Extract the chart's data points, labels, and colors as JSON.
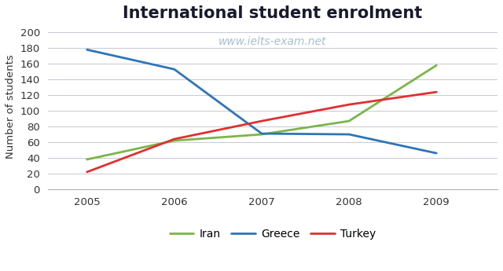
{
  "title": "International student enrolment",
  "ylabel": "Number of students",
  "watermark": "www.ielts-exam.net",
  "years": [
    2005,
    2006,
    2007,
    2008,
    2009
  ],
  "series": {
    "Iran": {
      "values": [
        38,
        62,
        70,
        87,
        158
      ],
      "color": "#7ab648",
      "linewidth": 2.0
    },
    "Greece": {
      "values": [
        178,
        153,
        71,
        70,
        46
      ],
      "color": "#2e75b6",
      "linewidth": 2.0
    },
    "Turkey": {
      "values": [
        22,
        64,
        87,
        108,
        124
      ],
      "color": "#e03030",
      "linewidth": 2.0
    }
  },
  "ylim": [
    0,
    210
  ],
  "yticks": [
    0,
    20,
    40,
    60,
    80,
    100,
    120,
    140,
    160,
    180,
    200
  ],
  "xlim": [
    2004.55,
    2009.7
  ],
  "background_color": "#ffffff",
  "grid_color": "#c8c8d4",
  "title_fontsize": 15,
  "title_fontweight": "bold",
  "title_color": "#1a1a2e",
  "axis_label_fontsize": 9.5,
  "tick_fontsize": 9.5,
  "legend_fontsize": 10,
  "watermark_color": "#a8bfcc",
  "watermark_fontsize": 10
}
